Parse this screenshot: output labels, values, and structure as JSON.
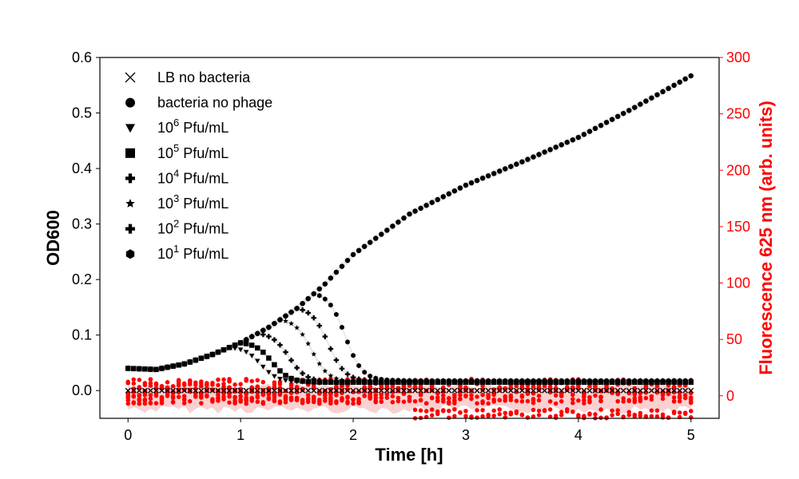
{
  "chart_data": {
    "type": "scatter",
    "xlabel": "Time [h]",
    "ylabel": "OD600",
    "y2label": "Fluorescence 625 nm (arb. units)",
    "xlim": [
      -0.25,
      5.25
    ],
    "ylim": [
      -0.05,
      0.6
    ],
    "y2lim": [
      -20,
      300
    ],
    "xticks": [
      "0",
      "1",
      "2",
      "3",
      "4",
      "5"
    ],
    "yticks": [
      "0.0",
      "0.1",
      "0.2",
      "0.3",
      "0.4",
      "0.5",
      "0.6"
    ],
    "y2ticks": [
      "0",
      "50",
      "100",
      "150",
      "200",
      "250",
      "300"
    ],
    "legend_position": "top-left",
    "colors": {
      "od": "#000000",
      "fluorescence": "#ff0000",
      "band": "#d9d9d9",
      "fluor_band": "#f7b3b3"
    },
    "legend": [
      {
        "marker": "x",
        "base": "LB no bacteria",
        "exp": "",
        "suffix": ""
      },
      {
        "marker": "circle",
        "base": "bacteria no phage",
        "exp": "",
        "suffix": ""
      },
      {
        "marker": "triangle-down",
        "base": "10",
        "exp": "6",
        "suffix": " Pfu/mL"
      },
      {
        "marker": "square",
        "base": "10",
        "exp": "5",
        "suffix": " Pfu/mL"
      },
      {
        "marker": "plus",
        "base": "10",
        "exp": "4",
        "suffix": " Pfu/mL"
      },
      {
        "marker": "star",
        "base": "10",
        "exp": "3",
        "suffix": " Pfu/mL"
      },
      {
        "marker": "plus",
        "base": "10",
        "exp": "2",
        "suffix": " Pfu/mL"
      },
      {
        "marker": "hexagon",
        "base": "10",
        "exp": "1",
        "suffix": " Pfu/mL"
      }
    ],
    "series": [
      {
        "name": "LB no bacteria",
        "marker": "x",
        "peak_time_h": null,
        "peak_od": null,
        "final_od": 0.0
      },
      {
        "name": "bacteria no phage",
        "marker": "circle",
        "peak_time_h": null,
        "peak_od": null,
        "final_od": 0.567
      },
      {
        "name": "10^6 Pfu/mL",
        "marker": "triangle-down",
        "peak_time_h": 0.9,
        "peak_od": 0.068,
        "final_od": 0.015
      },
      {
        "name": "10^5 Pfu/mL",
        "marker": "square",
        "peak_time_h": 1.0,
        "peak_od": 0.083,
        "final_od": 0.015
      },
      {
        "name": "10^4 Pfu/mL",
        "marker": "plus",
        "peak_time_h": 1.15,
        "peak_od": 0.11,
        "final_od": 0.016
      },
      {
        "name": "10^3 Pfu/mL",
        "marker": "star",
        "peak_time_h": 1.35,
        "peak_od": 0.138,
        "final_od": 0.016
      },
      {
        "name": "10^2 Pfu/mL",
        "marker": "plus",
        "peak_time_h": 1.5,
        "peak_od": 0.167,
        "final_od": 0.017
      },
      {
        "name": "10^1 Pfu/mL",
        "marker": "hexagon",
        "peak_time_h": 1.65,
        "peak_od": 0.188,
        "final_od": 0.018
      }
    ],
    "growth_curve_no_phage": {
      "x": [
        0,
        0.25,
        0.5,
        0.75,
        1.0,
        1.25,
        1.5,
        1.75,
        2.0,
        2.5,
        3.0,
        3.5,
        4.0,
        4.5,
        5.0
      ],
      "y": [
        0.04,
        0.038,
        0.048,
        0.065,
        0.086,
        0.114,
        0.148,
        0.192,
        0.245,
        0.318,
        0.37,
        0.412,
        0.456,
        0.51,
        0.567
      ]
    },
    "fluorescence": {
      "marker": "circle",
      "baseline": 0,
      "range": [
        -20,
        15
      ]
    }
  }
}
